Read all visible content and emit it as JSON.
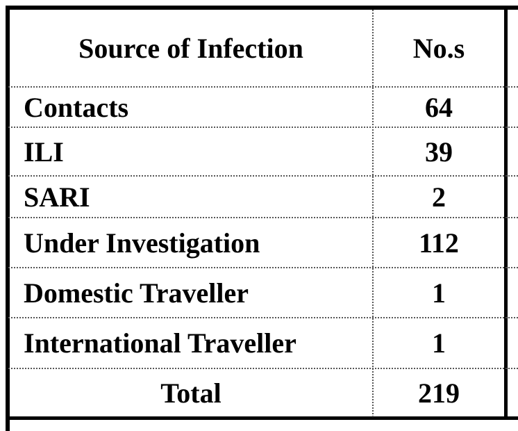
{
  "table": {
    "header": [
      "Source of Infection",
      "No.s"
    ],
    "rows": [
      [
        "Contacts",
        64
      ],
      [
        "ILI",
        39
      ],
      [
        "SARI",
        2
      ],
      [
        "Under Investigation",
        112
      ],
      [
        "Domestic Traveller",
        1
      ],
      [
        "International Traveller",
        1
      ]
    ],
    "total": [
      "Total",
      219
    ]
  }
}
